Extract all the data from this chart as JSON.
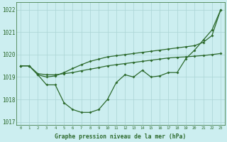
{
  "title": "Graphe pression niveau de la mer (hPa)",
  "bg_color": "#cceef0",
  "line_color": "#2d6a2d",
  "grid_color": "#aad4d4",
  "xlim": [
    -0.5,
    23.5
  ],
  "ylim": [
    1016.85,
    1022.35
  ],
  "yticks": [
    1017,
    1018,
    1019,
    1020,
    1021,
    1022
  ],
  "xticks": [
    0,
    1,
    2,
    3,
    4,
    5,
    6,
    7,
    8,
    9,
    10,
    11,
    12,
    13,
    14,
    15,
    16,
    17,
    18,
    19,
    20,
    21,
    22,
    23
  ],
  "line1": [
    1019.5,
    1019.5,
    1019.1,
    1018.65,
    1018.65,
    1017.85,
    1017.55,
    1017.42,
    1017.42,
    1017.55,
    1018.0,
    1018.75,
    1019.1,
    1019.0,
    1019.3,
    1019.0,
    1019.05,
    1019.2,
    1019.2,
    1019.82,
    1020.2,
    1020.65,
    1021.1,
    1022.0
  ],
  "line2": [
    1019.5,
    1019.5,
    1019.15,
    1019.1,
    1019.1,
    1019.15,
    1019.2,
    1019.28,
    1019.35,
    1019.42,
    1019.5,
    1019.55,
    1019.6,
    1019.65,
    1019.7,
    1019.75,
    1019.8,
    1019.85,
    1019.88,
    1019.9,
    1019.93,
    1019.96,
    1020.0,
    1020.05
  ],
  "line3": [
    1019.5,
    1019.5,
    1019.1,
    1019.0,
    1019.05,
    1019.2,
    1019.38,
    1019.55,
    1019.7,
    1019.8,
    1019.9,
    1019.95,
    1020.0,
    1020.05,
    1020.1,
    1020.15,
    1020.2,
    1020.25,
    1020.3,
    1020.35,
    1020.4,
    1020.55,
    1020.85,
    1022.0
  ]
}
